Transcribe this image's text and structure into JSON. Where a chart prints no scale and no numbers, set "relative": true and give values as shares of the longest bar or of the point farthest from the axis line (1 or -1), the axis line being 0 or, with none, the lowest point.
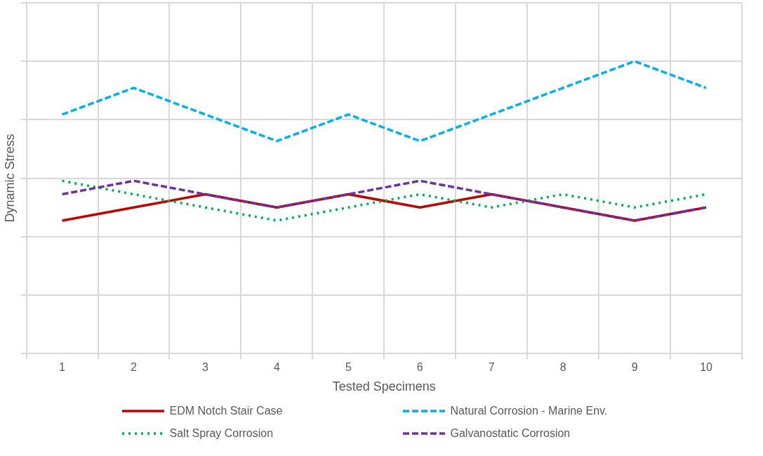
{
  "chart_data": {
    "type": "line",
    "relative": true,
    "xlabel": "Tested Specimens",
    "ylabel": "Dynamic Stress",
    "categories": [
      "1",
      "2",
      "3",
      "4",
      "5",
      "6",
      "7",
      "8",
      "9",
      "10"
    ],
    "grid": true,
    "legend": "bottom",
    "marker": "none",
    "tick_labels": "x",
    "series": [
      {
        "name": "EDM Notch Stair Case",
        "color": "#c00000",
        "line_style": "solid",
        "values": [
          0.455,
          0.5,
          0.545,
          0.5,
          0.545,
          0.5,
          0.545,
          0.5,
          0.455,
          0.5
        ]
      },
      {
        "name": "Natural Corrosion - Marine Env.",
        "color": "#00b0f0",
        "line_style": "dashed",
        "values": [
          0.818,
          0.909,
          0.818,
          0.727,
          0.818,
          0.727,
          0.818,
          0.909,
          1,
          0.909
        ]
      },
      {
        "name": "Salt Spray Corrosion",
        "color": "#00b050",
        "line_style": "dotted",
        "values": [
          0.591,
          0.545,
          0.5,
          0.455,
          0.5,
          0.545,
          0.5,
          0.545,
          0.5,
          0.545
        ]
      },
      {
        "name": "Galvanostatic Corrosion",
        "color": "#7030a0",
        "line_style": "dashed",
        "values": [
          0.545,
          0.591,
          0.545,
          0.5,
          0.545,
          0.591,
          0.545,
          0.5,
          0.455,
          0.5
        ]
      }
    ]
  }
}
